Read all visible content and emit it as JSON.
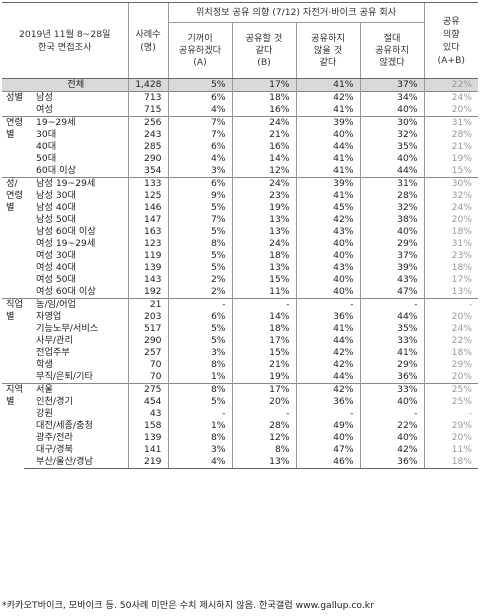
{
  "header": {
    "survey_label_line1": "2019년 11월 8~28일",
    "survey_label_line2": "한국 면접조사",
    "sample_line1": "사례수",
    "sample_line2": "(명)",
    "question": "위치정보 공유 의향 (7/12) 자전거·바이크 공유 회사",
    "options": [
      {
        "line1": "기꺼이",
        "line2": "공유하겠다",
        "line3": "(A)"
      },
      {
        "line1": "공유할 것",
        "line2": "같다",
        "line3": "(B)"
      },
      {
        "line1": "공유하지",
        "line2": "않을 것",
        "line3": "같다"
      },
      {
        "line1": "절대",
        "line2": "공유하지",
        "line3": "않겠다"
      }
    ],
    "share_line1": "공유",
    "share_line2": "의향",
    "share_line3": "있다",
    "share_line4": "(A+B)"
  },
  "groups": [
    {
      "category": "",
      "rows": [
        {
          "label": "전체",
          "n": "1,428",
          "a": "5%",
          "b": "17%",
          "c": "41%",
          "d": "37%",
          "ab": "22%"
        }
      ]
    },
    {
      "category": "성별",
      "rows": [
        {
          "label": "남성",
          "n": "713",
          "a": "6%",
          "b": "18%",
          "c": "42%",
          "d": "34%",
          "ab": "24%"
        },
        {
          "label": "여성",
          "n": "715",
          "a": "4%",
          "b": "16%",
          "c": "41%",
          "d": "40%",
          "ab": "20%"
        }
      ]
    },
    {
      "category": "연령별",
      "rows": [
        {
          "label": "19~29세",
          "n": "256",
          "a": "7%",
          "b": "24%",
          "c": "39%",
          "d": "30%",
          "ab": "31%"
        },
        {
          "label": "30대",
          "n": "243",
          "a": "7%",
          "b": "21%",
          "c": "40%",
          "d": "32%",
          "ab": "28%"
        },
        {
          "label": "40대",
          "n": "285",
          "a": "6%",
          "b": "16%",
          "c": "44%",
          "d": "35%",
          "ab": "21%"
        },
        {
          "label": "50대",
          "n": "290",
          "a": "4%",
          "b": "14%",
          "c": "41%",
          "d": "40%",
          "ab": "19%"
        },
        {
          "label": "60대 이상",
          "n": "354",
          "a": "3%",
          "b": "12%",
          "c": "41%",
          "d": "44%",
          "ab": "15%"
        }
      ]
    },
    {
      "category": "성/ 연령별",
      "rows": [
        {
          "label": "남성 19~29세",
          "n": "133",
          "a": "6%",
          "b": "24%",
          "c": "39%",
          "d": "31%",
          "ab": "30%"
        },
        {
          "label": "남성 30대",
          "n": "125",
          "a": "9%",
          "b": "23%",
          "c": "41%",
          "d": "28%",
          "ab": "32%"
        },
        {
          "label": "남성 40대",
          "n": "146",
          "a": "5%",
          "b": "19%",
          "c": "45%",
          "d": "32%",
          "ab": "24%"
        },
        {
          "label": "남성 50대",
          "n": "147",
          "a": "7%",
          "b": "13%",
          "c": "42%",
          "d": "38%",
          "ab": "20%"
        },
        {
          "label": "남성 60대 이상",
          "n": "163",
          "a": "5%",
          "b": "13%",
          "c": "43%",
          "d": "40%",
          "ab": "18%"
        },
        {
          "label": "여성 19~29세",
          "n": "123",
          "a": "8%",
          "b": "24%",
          "c": "40%",
          "d": "29%",
          "ab": "31%"
        },
        {
          "label": "여성 30대",
          "n": "119",
          "a": "5%",
          "b": "18%",
          "c": "40%",
          "d": "37%",
          "ab": "23%"
        },
        {
          "label": "여성 40대",
          "n": "139",
          "a": "5%",
          "b": "13%",
          "c": "43%",
          "d": "39%",
          "ab": "18%"
        },
        {
          "label": "여성 50대",
          "n": "143",
          "a": "2%",
          "b": "15%",
          "c": "40%",
          "d": "43%",
          "ab": "17%"
        },
        {
          "label": "여성 60대 이상",
          "n": "192",
          "a": "2%",
          "b": "11%",
          "c": "40%",
          "d": "47%",
          "ab": "13%"
        }
      ]
    },
    {
      "category": "직업별",
      "rows": [
        {
          "label": "농/임/어업",
          "n": "21",
          "a": "-",
          "b": "-",
          "c": "-",
          "d": "-",
          "ab": "-"
        },
        {
          "label": "자영업",
          "n": "203",
          "a": "6%",
          "b": "14%",
          "c": "36%",
          "d": "44%",
          "ab": "20%"
        },
        {
          "label": "기능노무/서비스",
          "n": "517",
          "a": "5%",
          "b": "18%",
          "c": "41%",
          "d": "35%",
          "ab": "24%"
        },
        {
          "label": "사무/관리",
          "n": "290",
          "a": "5%",
          "b": "17%",
          "c": "44%",
          "d": "33%",
          "ab": "22%"
        },
        {
          "label": "전업주부",
          "n": "257",
          "a": "3%",
          "b": "15%",
          "c": "42%",
          "d": "41%",
          "ab": "18%"
        },
        {
          "label": "학생",
          "n": "70",
          "a": "8%",
          "b": "21%",
          "c": "42%",
          "d": "29%",
          "ab": "29%"
        },
        {
          "label": "무직/은퇴/기타",
          "n": "70",
          "a": "1%",
          "b": "19%",
          "c": "44%",
          "d": "36%",
          "ab": "20%"
        }
      ]
    },
    {
      "category": "지역별",
      "rows": [
        {
          "label": "서울",
          "n": "275",
          "a": "8%",
          "b": "17%",
          "c": "42%",
          "d": "33%",
          "ab": "25%"
        },
        {
          "label": "인천/경기",
          "n": "454",
          "a": "5%",
          "b": "20%",
          "c": "36%",
          "d": "40%",
          "ab": "25%"
        },
        {
          "label": "강원",
          "n": "43",
          "a": "-",
          "b": "-",
          "c": "-",
          "d": "-",
          "ab": "-"
        },
        {
          "label": "대전/세종/충청",
          "n": "158",
          "a": "1%",
          "b": "28%",
          "c": "49%",
          "d": "22%",
          "ab": "29%"
        },
        {
          "label": "광주/전라",
          "n": "139",
          "a": "8%",
          "b": "12%",
          "c": "40%",
          "d": "40%",
          "ab": "20%"
        },
        {
          "label": "대구/경북",
          "n": "141",
          "a": "3%",
          "b": "8%",
          "c": "47%",
          "d": "42%",
          "ab": "11%"
        },
        {
          "label": "부산/울산/경남",
          "n": "219",
          "a": "4%",
          "b": "13%",
          "c": "46%",
          "d": "36%",
          "ab": "18%"
        }
      ]
    }
  ],
  "footnote": "*카카오T바이크, 모바이크 등. 50사례 미만은 수치 제시하지 않음. 한국갤럽 www.gallup.co.kr"
}
